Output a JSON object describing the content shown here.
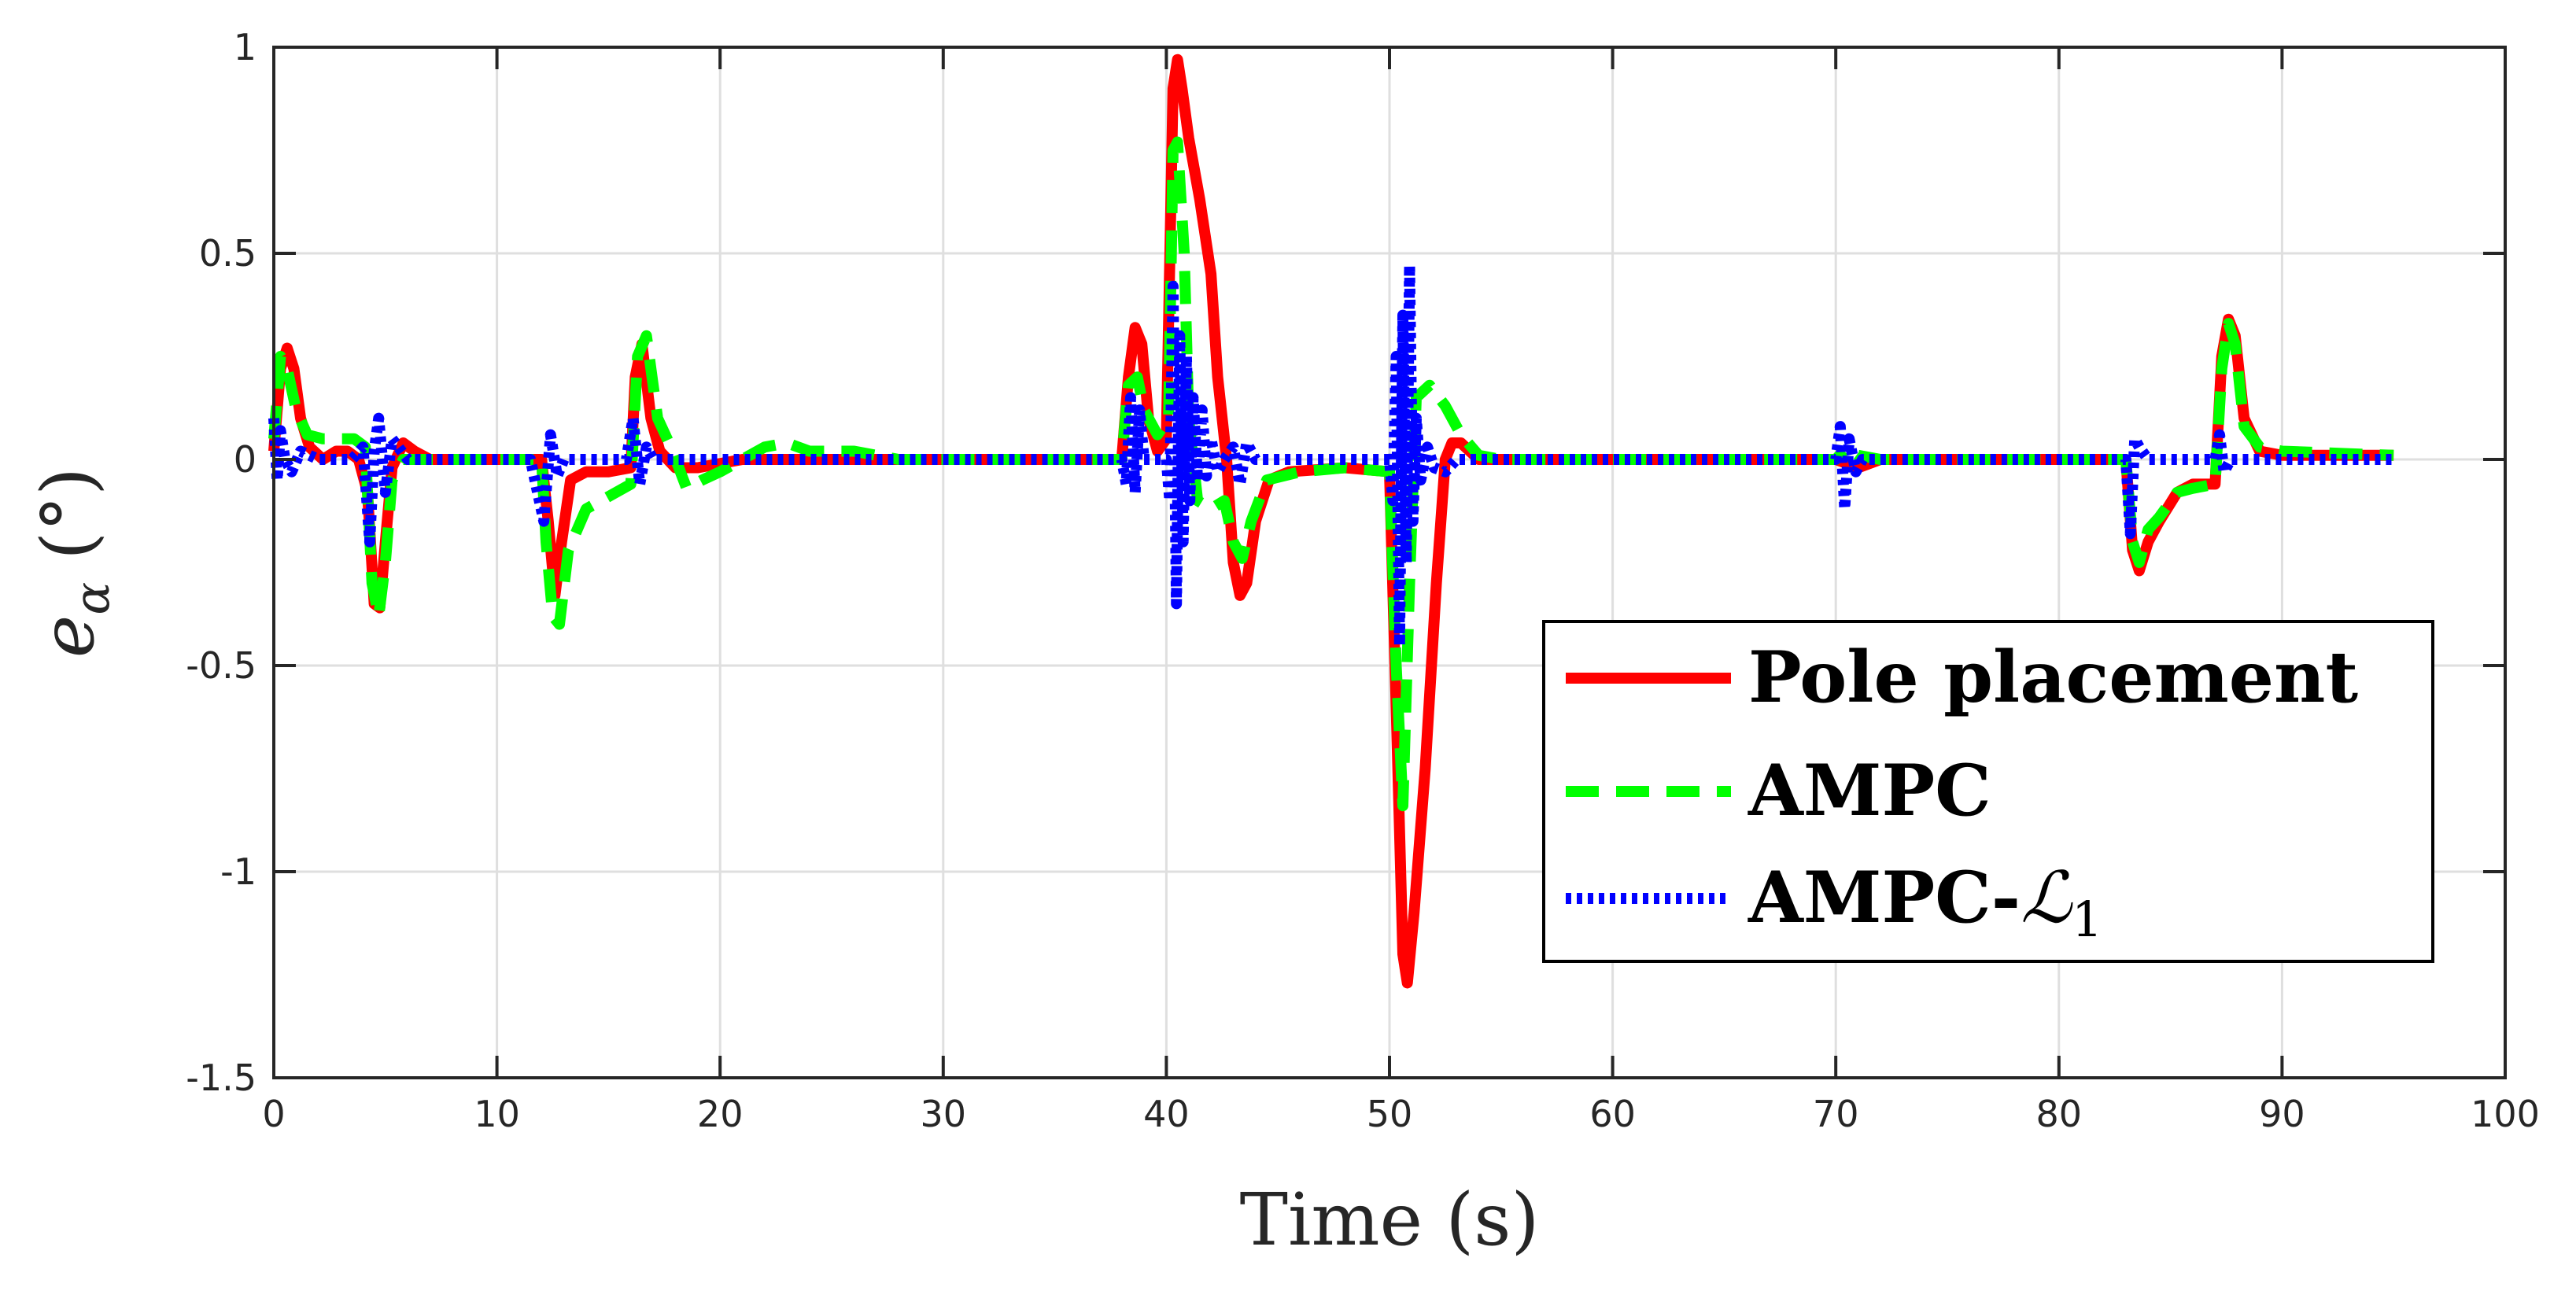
{
  "chart_data": {
    "type": "line",
    "title": "",
    "xlabel": "Time (s)",
    "ylabel": "e_α (°)",
    "ylabel_parts": {
      "symbol": "e",
      "subscript": "α",
      "unit": "(°)"
    },
    "xlim": [
      0,
      100
    ],
    "ylim": [
      -1.5,
      1
    ],
    "xticks": [
      0,
      10,
      20,
      30,
      40,
      50,
      60,
      70,
      80,
      90,
      100
    ],
    "yticks": [
      -1.5,
      -1,
      -0.5,
      0,
      0.5,
      1
    ],
    "xtick_labels": [
      "0",
      "10",
      "20",
      "30",
      "40",
      "50",
      "60",
      "70",
      "80",
      "90",
      "100"
    ],
    "ytick_labels": [
      "-1.5",
      "-1",
      "-0.5",
      "0",
      "0.5",
      "1"
    ],
    "grid": true,
    "legend_position": "bottom-right",
    "series": [
      {
        "name": "Pole placement",
        "legend_label": "Pole placement",
        "color": "#ff0000",
        "style": "solid",
        "points": [
          [
            0,
            0.02
          ],
          [
            0.3,
            0.22
          ],
          [
            0.6,
            0.27
          ],
          [
            0.9,
            0.22
          ],
          [
            1.2,
            0.1
          ],
          [
            1.6,
            0.03
          ],
          [
            2.2,
            0.0
          ],
          [
            2.8,
            0.02
          ],
          [
            3.3,
            0.02
          ],
          [
            3.8,
            0.0
          ],
          [
            4.2,
            -0.08
          ],
          [
            4.5,
            -0.35
          ],
          [
            4.75,
            -0.36
          ],
          [
            5.0,
            -0.2
          ],
          [
            5.3,
            -0.02
          ],
          [
            5.8,
            0.04
          ],
          [
            6.3,
            0.02
          ],
          [
            7,
            0
          ],
          [
            12,
            0
          ],
          [
            12.3,
            -0.15
          ],
          [
            12.6,
            -0.33
          ],
          [
            12.9,
            -0.2
          ],
          [
            13.3,
            -0.05
          ],
          [
            14,
            -0.03
          ],
          [
            15,
            -0.03
          ],
          [
            16,
            -0.02
          ],
          [
            16.2,
            0.2
          ],
          [
            16.5,
            0.28
          ],
          [
            16.9,
            0.1
          ],
          [
            17.3,
            0.02
          ],
          [
            18,
            -0.02
          ],
          [
            19,
            -0.02
          ],
          [
            20,
            -0.01
          ],
          [
            21,
            0
          ],
          [
            38,
            0
          ],
          [
            38.3,
            0.2
          ],
          [
            38.6,
            0.32
          ],
          [
            38.9,
            0.28
          ],
          [
            39.2,
            0.1
          ],
          [
            39.6,
            0.02
          ],
          [
            40,
            0.05
          ],
          [
            40.3,
            0.9
          ],
          [
            40.5,
            0.97
          ],
          [
            40.7,
            0.9
          ],
          [
            41,
            0.78
          ],
          [
            41.5,
            0.63
          ],
          [
            42,
            0.45
          ],
          [
            42.3,
            0.2
          ],
          [
            42.7,
            0
          ],
          [
            43,
            -0.25
          ],
          [
            43.3,
            -0.33
          ],
          [
            43.6,
            -0.3
          ],
          [
            44,
            -0.15
          ],
          [
            44.6,
            -0.05
          ],
          [
            45.5,
            -0.03
          ],
          [
            48,
            -0.02
          ],
          [
            50,
            -0.03
          ],
          [
            50.3,
            -0.6
          ],
          [
            50.6,
            -1.2
          ],
          [
            50.8,
            -1.27
          ],
          [
            51.1,
            -1.1
          ],
          [
            51.6,
            -0.75
          ],
          [
            52.1,
            -0.3
          ],
          [
            52.5,
            0
          ],
          [
            52.8,
            0.04
          ],
          [
            53.2,
            0.04
          ],
          [
            54,
            0
          ],
          [
            70,
            0
          ],
          [
            70.5,
            -0.01
          ],
          [
            71,
            -0.02
          ],
          [
            72,
            0
          ],
          [
            83,
            0
          ],
          [
            83.3,
            -0.22
          ],
          [
            83.6,
            -0.27
          ],
          [
            84,
            -0.2
          ],
          [
            84.5,
            -0.15
          ],
          [
            85.3,
            -0.08
          ],
          [
            86,
            -0.06
          ],
          [
            87,
            -0.06
          ],
          [
            87.3,
            0.25
          ],
          [
            87.6,
            0.34
          ],
          [
            87.9,
            0.3
          ],
          [
            88.3,
            0.1
          ],
          [
            89,
            0.02
          ],
          [
            90,
            0.01
          ],
          [
            95,
            0.01
          ]
        ]
      },
      {
        "name": "AMPC",
        "legend_label": "AMPC",
        "color": "#00ff00",
        "style": "dashed",
        "points": [
          [
            0,
            0.05
          ],
          [
            0.3,
            0.25
          ],
          [
            0.6,
            0.22
          ],
          [
            1,
            0.12
          ],
          [
            1.5,
            0.06
          ],
          [
            2.2,
            0.05
          ],
          [
            3,
            0.05
          ],
          [
            3.6,
            0.05
          ],
          [
            4.1,
            0.03
          ],
          [
            4.4,
            -0.3
          ],
          [
            4.7,
            -0.38
          ],
          [
            5,
            -0.25
          ],
          [
            5.3,
            -0.05
          ],
          [
            5.8,
            0
          ],
          [
            7,
            0
          ],
          [
            12,
            0
          ],
          [
            12.2,
            -0.2
          ],
          [
            12.5,
            -0.38
          ],
          [
            12.8,
            -0.4
          ],
          [
            13.2,
            -0.22
          ],
          [
            14,
            -0.12
          ],
          [
            15,
            -0.09
          ],
          [
            16,
            -0.06
          ],
          [
            16.3,
            0.25
          ],
          [
            16.7,
            0.3
          ],
          [
            17.2,
            0.1
          ],
          [
            17.8,
            0.03
          ],
          [
            18.5,
            -0.07
          ],
          [
            19.2,
            -0.05
          ],
          [
            20,
            -0.03
          ],
          [
            21,
            0
          ],
          [
            22,
            0.03
          ],
          [
            23,
            0.04
          ],
          [
            24,
            0.02
          ],
          [
            26,
            0.02
          ],
          [
            28,
            0
          ],
          [
            38,
            0
          ],
          [
            38.3,
            0.18
          ],
          [
            38.7,
            0.2
          ],
          [
            39,
            0.12
          ],
          [
            39.6,
            0.06
          ],
          [
            40.1,
            0.1
          ],
          [
            40.3,
            0.75
          ],
          [
            40.5,
            0.77
          ],
          [
            40.8,
            0.5
          ],
          [
            41,
            0.1
          ],
          [
            41.4,
            -0.1
          ],
          [
            42,
            -0.12
          ],
          [
            42.6,
            -0.1
          ],
          [
            43,
            -0.2
          ],
          [
            43.4,
            -0.24
          ],
          [
            43.8,
            -0.15
          ],
          [
            44.5,
            -0.05
          ],
          [
            46,
            -0.03
          ],
          [
            48,
            -0.02
          ],
          [
            50,
            -0.03
          ],
          [
            50.3,
            -0.5
          ],
          [
            50.6,
            -0.84
          ],
          [
            50.9,
            -0.3
          ],
          [
            51.2,
            0.15
          ],
          [
            51.8,
            0.18
          ],
          [
            52.5,
            0.13
          ],
          [
            53.2,
            0.06
          ],
          [
            54,
            0.01
          ],
          [
            55,
            0
          ],
          [
            70,
            0
          ],
          [
            70.5,
            0.03
          ],
          [
            71,
            0.01
          ],
          [
            72,
            0
          ],
          [
            83,
            0
          ],
          [
            83.3,
            -0.2
          ],
          [
            83.6,
            -0.25
          ],
          [
            84,
            -0.17
          ],
          [
            84.5,
            -0.14
          ],
          [
            85.3,
            -0.08
          ],
          [
            86,
            -0.07
          ],
          [
            87,
            -0.06
          ],
          [
            87.3,
            0.22
          ],
          [
            87.6,
            0.33
          ],
          [
            87.9,
            0.28
          ],
          [
            88.3,
            0.08
          ],
          [
            89,
            0.03
          ],
          [
            90,
            0.02
          ],
          [
            95,
            0.01
          ]
        ]
      },
      {
        "name": "AMPC-L1",
        "legend_label": "AMPC-",
        "legend_script": "ℒ",
        "legend_subscript": "1",
        "color": "#0000ff",
        "style": "dotted",
        "points": [
          [
            0,
            0.1
          ],
          [
            0.15,
            -0.05
          ],
          [
            0.3,
            0.07
          ],
          [
            0.5,
            0
          ],
          [
            0.8,
            -0.03
          ],
          [
            1.2,
            0.02
          ],
          [
            2,
            0
          ],
          [
            3.5,
            0
          ],
          [
            4,
            0.03
          ],
          [
            4.3,
            -0.2
          ],
          [
            4.5,
            0.02
          ],
          [
            4.7,
            0.1
          ],
          [
            5,
            -0.08
          ],
          [
            5.3,
            0.05
          ],
          [
            6,
            0
          ],
          [
            11.5,
            0
          ],
          [
            12.1,
            -0.15
          ],
          [
            12.4,
            0.06
          ],
          [
            12.7,
            -0.04
          ],
          [
            13,
            0
          ],
          [
            15.8,
            0
          ],
          [
            16.1,
            0.1
          ],
          [
            16.4,
            -0.06
          ],
          [
            16.7,
            0.03
          ],
          [
            17,
            0
          ],
          [
            38,
            0
          ],
          [
            38.2,
            -0.06
          ],
          [
            38.4,
            0.15
          ],
          [
            38.6,
            -0.08
          ],
          [
            38.8,
            0.12
          ],
          [
            39,
            0
          ],
          [
            40,
            0
          ],
          [
            40.15,
            -0.1
          ],
          [
            40.3,
            0.42
          ],
          [
            40.45,
            -0.35
          ],
          [
            40.6,
            0.3
          ],
          [
            40.75,
            -0.2
          ],
          [
            40.9,
            0.25
          ],
          [
            41.05,
            -0.1
          ],
          [
            41.2,
            0.15
          ],
          [
            41.4,
            -0.05
          ],
          [
            41.6,
            0.12
          ],
          [
            41.8,
            -0.04
          ],
          [
            42,
            0.05
          ],
          [
            42.3,
            -0.03
          ],
          [
            42.6,
            0
          ],
          [
            43,
            0.03
          ],
          [
            43.3,
            -0.06
          ],
          [
            43.6,
            0.04
          ],
          [
            44,
            0
          ],
          [
            50,
            0
          ],
          [
            50.15,
            -0.1
          ],
          [
            50.3,
            0.25
          ],
          [
            50.45,
            -0.45
          ],
          [
            50.6,
            0.35
          ],
          [
            50.75,
            -0.25
          ],
          [
            50.9,
            0.47
          ],
          [
            51.05,
            -0.15
          ],
          [
            51.2,
            0.1
          ],
          [
            51.4,
            -0.05
          ],
          [
            51.7,
            0.03
          ],
          [
            52,
            -0.02
          ],
          [
            52.5,
            -0.03
          ],
          [
            53,
            0
          ],
          [
            70,
            0
          ],
          [
            70.2,
            0.08
          ],
          [
            70.4,
            -0.12
          ],
          [
            70.6,
            0.05
          ],
          [
            70.9,
            -0.03
          ],
          [
            71.2,
            0
          ],
          [
            83,
            0
          ],
          [
            83.2,
            -0.18
          ],
          [
            83.4,
            0.05
          ],
          [
            83.6,
            0.03
          ],
          [
            84,
            0
          ],
          [
            87,
            0
          ],
          [
            87.2,
            0.06
          ],
          [
            87.4,
            -0.03
          ],
          [
            87.7,
            0
          ],
          [
            95,
            0
          ]
        ]
      }
    ]
  }
}
